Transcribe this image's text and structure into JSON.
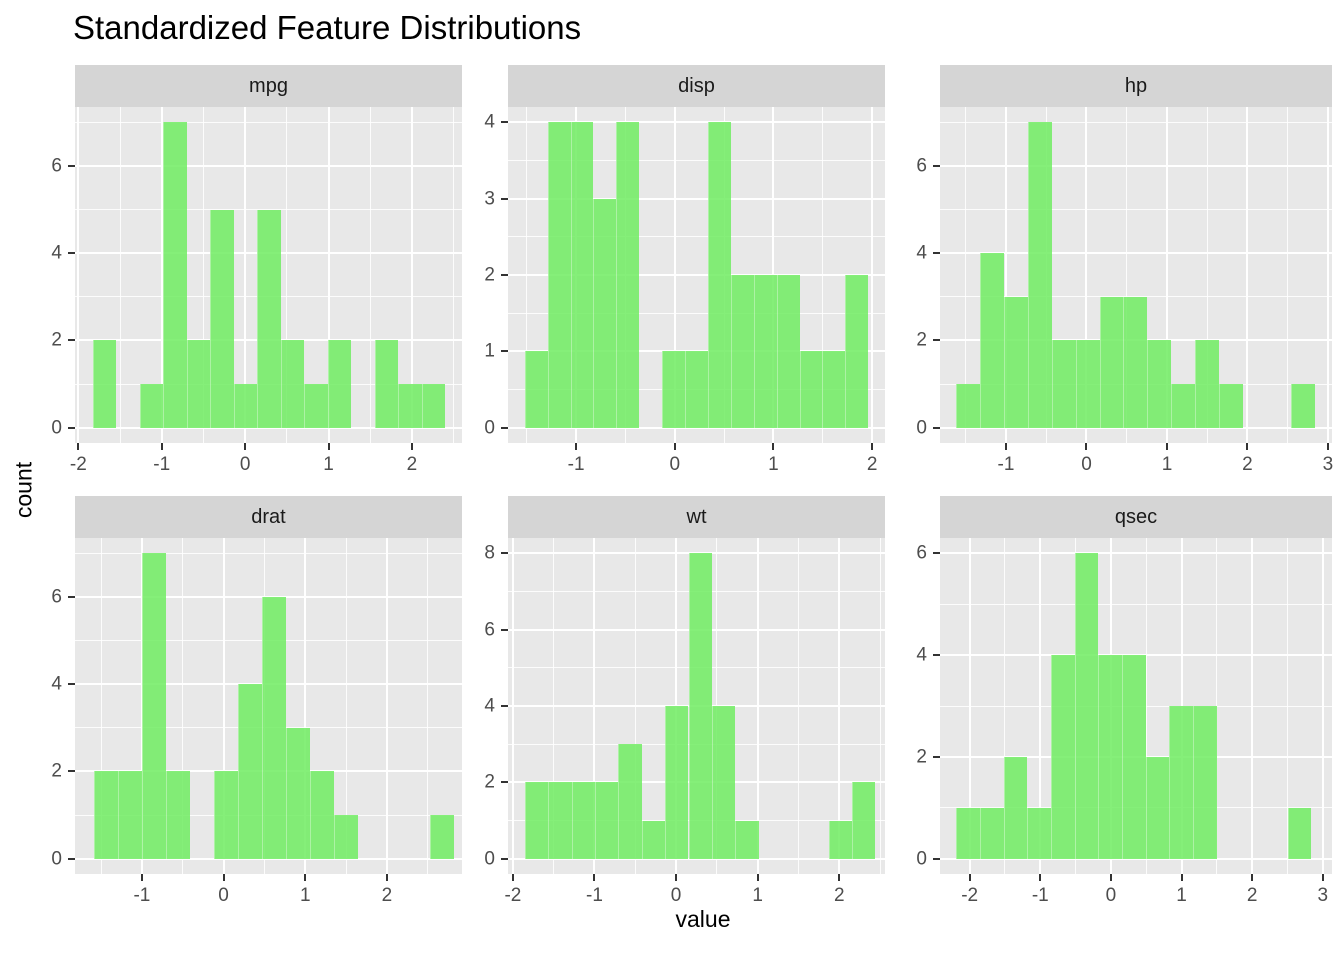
{
  "title": "Standardized Feature Distributions",
  "axes": {
    "x_title": "value",
    "y_title": "count"
  },
  "style": {
    "bar_color": "rgba(112,236,97,0.85)",
    "panel_bg": "#E8E8E8",
    "strip_bg": "#D5D5D5",
    "grid_color": "#FFFFFF",
    "tick_label_color": "#4D4D4D",
    "strip_text_color": "#1A1A1A",
    "tick_mark_color": "#333333",
    "title_color": "#000000"
  },
  "chart_data": {
    "type": "histogram",
    "title": "Standardized Feature Distributions",
    "xlabel": "value",
    "ylabel": "count",
    "layout": "facet-grid 2x3, free scales, grey panels with white gridlines, green bars",
    "facets": [
      {
        "label": "mpg",
        "x_ticks": [
          -2,
          -1,
          0,
          1,
          2
        ],
        "xlim": [
          -2.04,
          2.6
        ],
        "y_ticks": [
          0,
          2,
          4,
          6
        ],
        "y_max": 7,
        "bin_start": -1.83,
        "bin_width": 0.282,
        "counts": [
          2,
          0,
          1,
          7,
          2,
          5,
          1,
          5,
          2,
          1,
          2,
          0,
          2,
          1,
          1
        ]
      },
      {
        "label": "disp",
        "x_ticks": [
          -1,
          0,
          1,
          2
        ],
        "xlim": [
          -1.69,
          2.13
        ],
        "y_ticks": [
          0,
          1,
          2,
          3,
          4
        ],
        "y_max": 4,
        "bin_start": -1.52,
        "bin_width": 0.232,
        "counts": [
          1,
          4,
          4,
          3,
          4,
          0,
          1,
          1,
          4,
          2,
          2,
          2,
          1,
          1,
          2
        ]
      },
      {
        "label": "hp",
        "x_ticks": [
          -1,
          0,
          1,
          2,
          3
        ],
        "xlim": [
          -1.82,
          3.05
        ],
        "y_ticks": [
          0,
          2,
          4,
          6
        ],
        "y_max": 7,
        "bin_start": -1.62,
        "bin_width": 0.297,
        "counts": [
          1,
          4,
          3,
          7,
          2,
          2,
          3,
          3,
          2,
          1,
          2,
          1,
          0,
          0,
          1
        ]
      },
      {
        "label": "drat",
        "x_ticks": [
          -1,
          0,
          1,
          2
        ],
        "xlim": [
          -1.82,
          2.92
        ],
        "y_ticks": [
          0,
          2,
          4,
          6
        ],
        "y_max": 7,
        "bin_start": -1.59,
        "bin_width": 0.294,
        "counts": [
          2,
          2,
          7,
          2,
          0,
          2,
          4,
          6,
          3,
          2,
          1,
          0,
          0,
          0,
          1
        ]
      },
      {
        "label": "wt",
        "x_ticks": [
          -2,
          -1,
          0,
          1,
          2
        ],
        "xlim": [
          -2.06,
          2.56
        ],
        "y_ticks": [
          0,
          2,
          4,
          6,
          8
        ],
        "y_max": 8,
        "bin_start": -1.85,
        "bin_width": 0.286,
        "counts": [
          2,
          2,
          2,
          2,
          3,
          1,
          4,
          8,
          4,
          1,
          0,
          0,
          0,
          1,
          2
        ]
      },
      {
        "label": "qsec",
        "x_ticks": [
          -2,
          -1,
          0,
          1,
          2,
          3
        ],
        "xlim": [
          -2.42,
          3.13
        ],
        "y_ticks": [
          0,
          2,
          4,
          6
        ],
        "y_max": 6,
        "bin_start": -2.19,
        "bin_width": 0.335,
        "counts": [
          1,
          1,
          2,
          1,
          4,
          6,
          4,
          4,
          2,
          3,
          3,
          0,
          0,
          0,
          1
        ]
      }
    ]
  }
}
